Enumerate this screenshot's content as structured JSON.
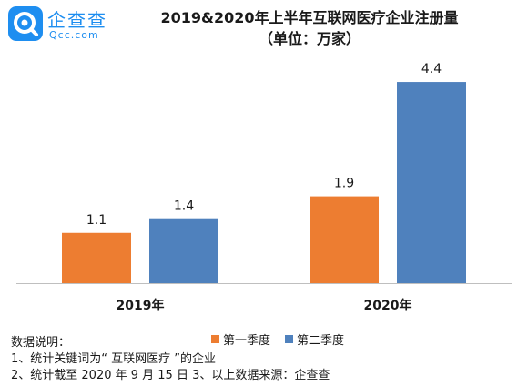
{
  "logo": {
    "cn": "企查查",
    "en": "Qcc.com"
  },
  "colors": {
    "q1": "#ed7d31",
    "q2": "#4f81bd",
    "brand": "#1e8ef0"
  },
  "notes": [
    "数据说明：",
    "1、统计关键词为“ 互联网医疗 ”的企业",
    "2、统计截至 2020 年 9 月 15 日 3、以上数据来源：企查查"
  ],
  "chart_data": {
    "type": "bar",
    "title": "2019&2020年上半年互联网医疗企业注册量",
    "subtitle": "（单位：万家）",
    "categories": [
      "2019年",
      "2020年"
    ],
    "series": [
      {
        "name": "第一季度",
        "values": [
          1.1,
          1.9
        ]
      },
      {
        "name": "第二季度",
        "values": [
          1.4,
          4.4
        ]
      }
    ],
    "data_labels": [
      [
        "1.1",
        "1.9"
      ],
      [
        "1.4",
        "4.4"
      ]
    ],
    "ylim": [
      0,
      4.7
    ],
    "grid": false,
    "legend": "bottom"
  }
}
